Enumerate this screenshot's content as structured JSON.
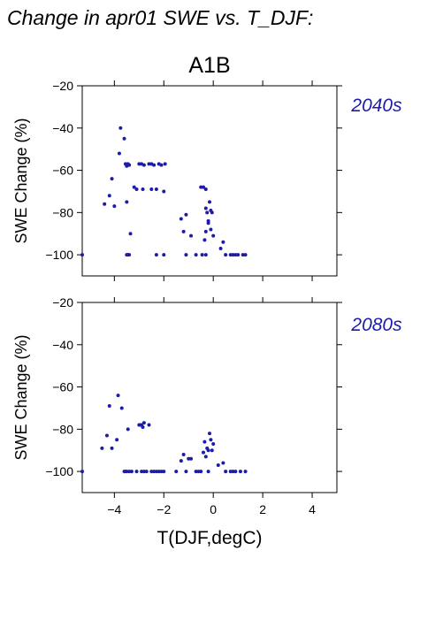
{
  "title": "Change in apr01 SWE vs. T_DJF:",
  "scenario": "A1B",
  "xlabel": "T(DJF,degC)",
  "colors": {
    "points": "#1c1ca8",
    "panel_label": "#1c1ca8",
    "axes": "#000000"
  },
  "chart_data": [
    {
      "type": "scatter",
      "panel_label": "2040s",
      "ylabel": "SWE Change (%)",
      "xlim": [
        -5.3,
        5.0
      ],
      "ylim": [
        -110,
        -20
      ],
      "xticks": [
        -4,
        -2,
        0,
        2,
        4
      ],
      "yticks": [
        -100,
        -80,
        -60,
        -40,
        -20
      ],
      "x_tick_labels_shown": false,
      "points": [
        [
          -5.3,
          -100
        ],
        [
          -4.4,
          -76
        ],
        [
          -4.2,
          -72
        ],
        [
          -4.1,
          -64
        ],
        [
          -4.0,
          -77
        ],
        [
          -3.8,
          -52
        ],
        [
          -3.75,
          -40
        ],
        [
          -3.6,
          -45
        ],
        [
          -3.55,
          -57
        ],
        [
          -3.5,
          -58
        ],
        [
          -3.45,
          -57
        ],
        [
          -3.4,
          -57.5
        ],
        [
          -3.5,
          -75
        ],
        [
          -3.5,
          -100
        ],
        [
          -3.45,
          -100
        ],
        [
          -3.4,
          -100
        ],
        [
          -3.35,
          -90
        ],
        [
          -3.2,
          -68
        ],
        [
          -3.1,
          -69
        ],
        [
          -3.0,
          -57
        ],
        [
          -2.9,
          -57
        ],
        [
          -2.8,
          -57.5
        ],
        [
          -2.85,
          -69
        ],
        [
          -2.6,
          -57
        ],
        [
          -2.5,
          -57
        ],
        [
          -2.4,
          -57.5
        ],
        [
          -2.5,
          -69
        ],
        [
          -2.3,
          -69
        ],
        [
          -2.2,
          -57
        ],
        [
          -2.1,
          -57.5
        ],
        [
          -1.95,
          -57
        ],
        [
          -2.0,
          -70
        ],
        [
          -2.3,
          -100
        ],
        [
          -2.0,
          -100
        ],
        [
          -1.3,
          -83
        ],
        [
          -1.2,
          -89
        ],
        [
          -1.1,
          -81
        ],
        [
          -1.1,
          -100
        ],
        [
          -0.9,
          -91
        ],
        [
          -0.7,
          -100
        ],
        [
          -0.5,
          -68
        ],
        [
          -0.4,
          -68
        ],
        [
          -0.3,
          -69
        ],
        [
          -0.3,
          -78
        ],
        [
          -0.25,
          -80
        ],
        [
          -0.2,
          -84
        ],
        [
          -0.2,
          -85
        ],
        [
          -0.3,
          -89
        ],
        [
          -0.35,
          -93
        ],
        [
          -0.45,
          -100
        ],
        [
          -0.3,
          -100
        ],
        [
          -0.15,
          -75
        ],
        [
          -0.1,
          -79
        ],
        [
          -0.05,
          -80
        ],
        [
          -0.1,
          -88
        ],
        [
          0.0,
          -91
        ],
        [
          0.3,
          -97
        ],
        [
          0.4,
          -94
        ],
        [
          0.5,
          -100
        ],
        [
          0.7,
          -100
        ],
        [
          0.8,
          -100
        ],
        [
          0.9,
          -100
        ],
        [
          1.0,
          -100
        ],
        [
          1.2,
          -100
        ],
        [
          1.3,
          -100
        ]
      ]
    },
    {
      "type": "scatter",
      "panel_label": "2080s",
      "ylabel": "SWE Change (%)",
      "xlim": [
        -5.3,
        5.0
      ],
      "ylim": [
        -110,
        -20
      ],
      "xticks": [
        -4,
        -2,
        0,
        2,
        4
      ],
      "yticks": [
        -100,
        -80,
        -60,
        -40,
        -20
      ],
      "x_tick_labels_shown": true,
      "x_tick_labels": [
        "−4",
        "−2",
        "0",
        "2",
        "4"
      ],
      "points": [
        [
          -5.3,
          -100
        ],
        [
          -4.5,
          -89
        ],
        [
          -4.3,
          -83
        ],
        [
          -4.2,
          -69
        ],
        [
          -4.1,
          -89
        ],
        [
          -3.9,
          -85
        ],
        [
          -3.85,
          -64
        ],
        [
          -3.7,
          -70
        ],
        [
          -3.6,
          -100
        ],
        [
          -3.55,
          -100
        ],
        [
          -3.5,
          -100
        ],
        [
          -3.45,
          -80
        ],
        [
          -3.4,
          -100
        ],
        [
          -3.3,
          -100
        ],
        [
          -3.1,
          -100
        ],
        [
          -3.0,
          -78
        ],
        [
          -2.95,
          -78
        ],
        [
          -2.9,
          -78
        ],
        [
          -2.85,
          -79
        ],
        [
          -2.8,
          -77
        ],
        [
          -2.9,
          -100
        ],
        [
          -2.8,
          -100
        ],
        [
          -2.7,
          -100
        ],
        [
          -2.6,
          -78
        ],
        [
          -2.5,
          -100
        ],
        [
          -2.4,
          -100
        ],
        [
          -2.3,
          -100
        ],
        [
          -2.2,
          -100
        ],
        [
          -2.1,
          -100
        ],
        [
          -2.0,
          -100
        ],
        [
          -1.5,
          -100
        ],
        [
          -1.3,
          -95
        ],
        [
          -1.2,
          -92
        ],
        [
          -1.1,
          -100
        ],
        [
          -1.0,
          -94
        ],
        [
          -0.9,
          -94
        ],
        [
          -0.7,
          -100
        ],
        [
          -0.6,
          -100
        ],
        [
          -0.5,
          -100
        ],
        [
          -0.4,
          -91
        ],
        [
          -0.35,
          -86
        ],
        [
          -0.3,
          -93
        ],
        [
          -0.25,
          -89
        ],
        [
          -0.2,
          -90
        ],
        [
          -0.2,
          -100
        ],
        [
          -0.15,
          -82
        ],
        [
          -0.1,
          -85
        ],
        [
          -0.05,
          -90
        ],
        [
          0.0,
          -87
        ],
        [
          0.2,
          -97
        ],
        [
          0.4,
          -96
        ],
        [
          0.5,
          -100
        ],
        [
          0.7,
          -100
        ],
        [
          0.8,
          -100
        ],
        [
          0.9,
          -100
        ],
        [
          1.1,
          -100
        ],
        [
          1.3,
          -100
        ]
      ]
    }
  ]
}
